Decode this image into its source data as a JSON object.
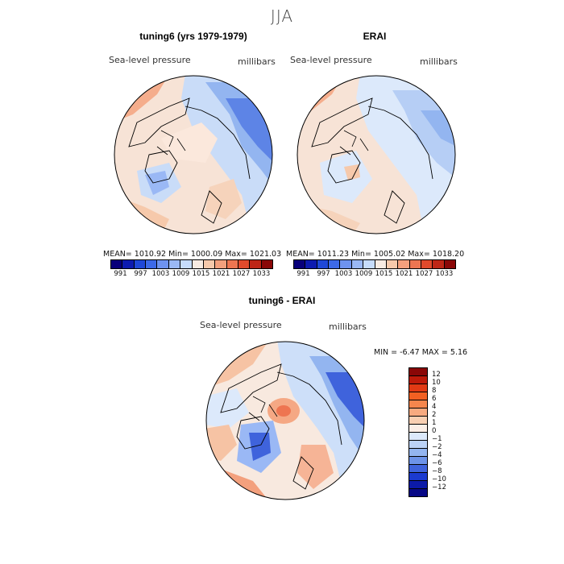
{
  "season": "JJA",
  "panel1": {
    "title": "tuning6 (yrs 1979-1979)",
    "left_label": "Sea-level pressure",
    "right_label": "millibars",
    "stats": "MEAN= 1010.92   Min= 1000.09   Max= 1021.03"
  },
  "panel2": {
    "title": "ERAI",
    "left_label": "Sea-level pressure",
    "right_label": "millibars",
    "stats": "MEAN= 1011.23   Min= 1005.02   Max= 1018.20"
  },
  "panel3": {
    "title": "tuning6 - ERAI",
    "left_label": "Sea-level pressure",
    "right_label": "millibars",
    "stats": "MIN =    -6.47 MAX =    5.16"
  },
  "slp_colorbar": {
    "colors": [
      "#08007a",
      "#0d1bb0",
      "#1f48d8",
      "#3d6ae8",
      "#6e93f0",
      "#9ab8f5",
      "#c6dcfb",
      "#f7ebe2",
      "#f6c9ab",
      "#f3a07d",
      "#ee7551",
      "#e04a2c",
      "#be2616",
      "#8a0707"
    ],
    "tick_labels": [
      "991",
      "997",
      "1003",
      "1009",
      "1015",
      "1021",
      "1027",
      "1033"
    ]
  },
  "diff_colorbar": {
    "colors": [
      "#8a0707",
      "#be1a0a",
      "#e23a14",
      "#f26022",
      "#f5864d",
      "#f7aa80",
      "#f8cfb2",
      "#fbeee6",
      "#dce9fb",
      "#bcd3f7",
      "#93b5f0",
      "#6d93e8",
      "#3f63dc",
      "#1b3ad0",
      "#0c1aa8",
      "#070886"
    ],
    "tick_labels": [
      "12",
      "10",
      "8",
      "6",
      "4",
      "2",
      "1",
      "0",
      "−1",
      "−2",
      "−4",
      "−6",
      "−8",
      "−10",
      "−12"
    ]
  }
}
